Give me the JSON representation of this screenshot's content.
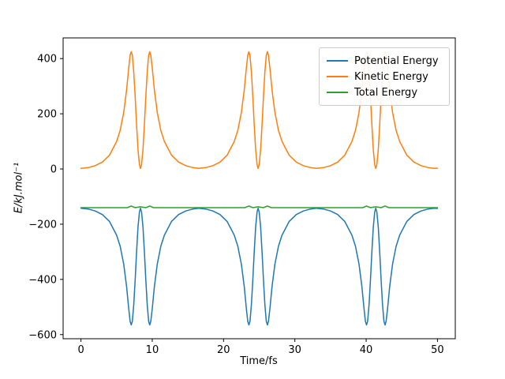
{
  "figure": {
    "background": "#ffffff"
  },
  "chart_data": {
    "type": "line",
    "title": "",
    "xlabel": "Time/fs",
    "ylabel": "E/kJ.mol⁻¹",
    "xlim": [
      -2.5,
      52.5
    ],
    "ylim": [
      -615,
      475
    ],
    "grid": false,
    "legend_position": "upper right",
    "xticks": {
      "values": [
        0,
        10,
        20,
        30,
        40,
        50
      ],
      "labels": [
        "0",
        "10",
        "20",
        "30",
        "40",
        "50"
      ]
    },
    "yticks": {
      "values": [
        -600,
        -400,
        -200,
        0,
        200,
        400
      ],
      "labels": [
        "−600",
        "−400",
        "−200",
        "0",
        "200",
        "400"
      ]
    },
    "x": [
      0,
      1,
      2,
      3,
      4,
      5,
      5.5,
      6,
      6.4,
      6.7,
      6.9,
      7.05,
      7.2,
      7.4,
      7.6,
      7.8,
      8.0,
      8.2,
      8.35,
      8.5,
      8.7,
      8.9,
      9.1,
      9.3,
      9.5,
      9.65,
      9.8,
      10.0,
      10.3,
      10.7,
      11.2,
      11.7,
      12.7,
      13.7,
      14.7,
      15.7,
      16.5,
      17.5,
      18.5,
      19.5,
      20.5,
      21.5,
      22.0,
      22.5,
      22.9,
      23.2,
      23.4,
      23.55,
      23.7,
      23.9,
      24.1,
      24.3,
      24.5,
      24.7,
      24.85,
      25.0,
      25.2,
      25.4,
      25.6,
      25.8,
      26.0,
      26.15,
      26.3,
      26.5,
      26.8,
      27.2,
      27.7,
      28.2,
      29.2,
      30.2,
      31.2,
      32.2,
      33,
      34,
      35,
      36,
      37,
      38,
      38.5,
      39,
      39.4,
      39.7,
      39.9,
      40.05,
      40.2,
      40.4,
      40.6,
      40.8,
      41.0,
      41.2,
      41.35,
      41.5,
      41.7,
      41.9,
      42.1,
      42.3,
      42.5,
      42.65,
      42.8,
      43.0,
      43.3,
      43.7,
      44.2,
      44.7,
      45.7,
      46.7,
      47.7,
      48.7,
      49.5,
      50
    ],
    "series": [
      {
        "name": "Potential Energy",
        "color": "#1f77b4",
        "y": [
          -142,
          -145,
          -152,
          -165,
          -190,
          -240,
          -280,
          -345,
          -425,
          -505,
          -552,
          -565,
          -552,
          -492,
          -402,
          -300,
          -210,
          -156,
          -142,
          -156,
          -210,
          -300,
          -402,
          -492,
          -552,
          -565,
          -552,
          -505,
          -425,
          -345,
          -280,
          -240,
          -190,
          -165,
          -152,
          -145,
          -142,
          -145,
          -152,
          -165,
          -190,
          -240,
          -280,
          -345,
          -425,
          -505,
          -552,
          -565,
          -552,
          -492,
          -402,
          -300,
          -210,
          -156,
          -142,
          -156,
          -210,
          -300,
          -402,
          -492,
          -552,
          -565,
          -552,
          -505,
          -425,
          -345,
          -280,
          -240,
          -190,
          -165,
          -152,
          -145,
          -142,
          -145,
          -152,
          -165,
          -190,
          -240,
          -280,
          -345,
          -425,
          -505,
          -552,
          -565,
          -552,
          -492,
          -402,
          -300,
          -210,
          -156,
          -142,
          -156,
          -210,
          -300,
          -402,
          -492,
          -552,
          -565,
          -552,
          -505,
          -425,
          -345,
          -280,
          -240,
          -190,
          -165,
          -152,
          -145,
          -142,
          -143
        ]
      },
      {
        "name": "Kinetic Energy",
        "color": "#ff7f0e",
        "y": [
          2,
          5,
          12,
          25,
          50,
          100,
          140,
          205,
          285,
          365,
          412,
          425,
          412,
          352,
          262,
          160,
          70,
          16,
          2,
          16,
          70,
          160,
          262,
          352,
          412,
          425,
          412,
          365,
          285,
          205,
          140,
          100,
          50,
          25,
          12,
          5,
          2,
          5,
          12,
          25,
          50,
          100,
          140,
          205,
          285,
          365,
          412,
          425,
          412,
          352,
          262,
          160,
          70,
          16,
          2,
          16,
          70,
          160,
          262,
          352,
          412,
          425,
          412,
          365,
          285,
          205,
          140,
          100,
          50,
          25,
          12,
          5,
          2,
          5,
          12,
          25,
          50,
          100,
          140,
          205,
          285,
          365,
          412,
          425,
          412,
          352,
          262,
          160,
          70,
          16,
          2,
          16,
          70,
          160,
          262,
          352,
          412,
          425,
          412,
          365,
          285,
          205,
          140,
          100,
          50,
          25,
          12,
          5,
          2,
          3
        ]
      },
      {
        "name": "Total Energy",
        "color": "#2ca02c",
        "x": [
          0,
          6.5,
          7.05,
          7.6,
          8.35,
          9.1,
          9.65,
          10.2,
          16.5,
          23.0,
          23.55,
          24.1,
          24.85,
          25.6,
          26.15,
          26.7,
          33.0,
          39.5,
          40.05,
          40.6,
          41.35,
          42.1,
          42.65,
          43.2,
          50
        ],
        "y": [
          -140,
          -140,
          -134,
          -140,
          -137,
          -140,
          -134,
          -140,
          -140,
          -140,
          -134,
          -140,
          -137,
          -140,
          -134,
          -140,
          -140,
          -140,
          -134,
          -140,
          -137,
          -140,
          -134,
          -140,
          -140
        ]
      }
    ]
  }
}
